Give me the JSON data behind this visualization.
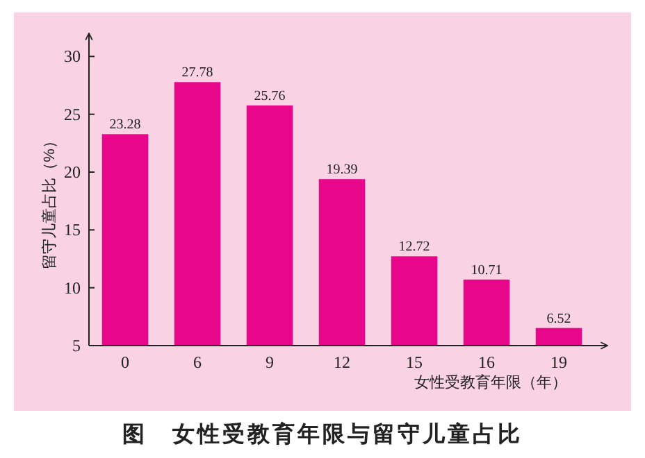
{
  "chart_data": {
    "type": "bar",
    "title": "图　女性受教育年限与留守儿童占比",
    "xlabel": "女性受教育年限（年）",
    "ylabel": "留守儿童占比（%）",
    "categories": [
      "0",
      "6",
      "9",
      "12",
      "15",
      "16",
      "19"
    ],
    "values": [
      23.28,
      27.78,
      25.76,
      19.39,
      12.72,
      10.71,
      6.52
    ],
    "color": "#e8068a",
    "ylim": [
      5,
      32
    ],
    "yticks": [
      5,
      10,
      15,
      20,
      25,
      30
    ],
    "data_labels": true
  }
}
